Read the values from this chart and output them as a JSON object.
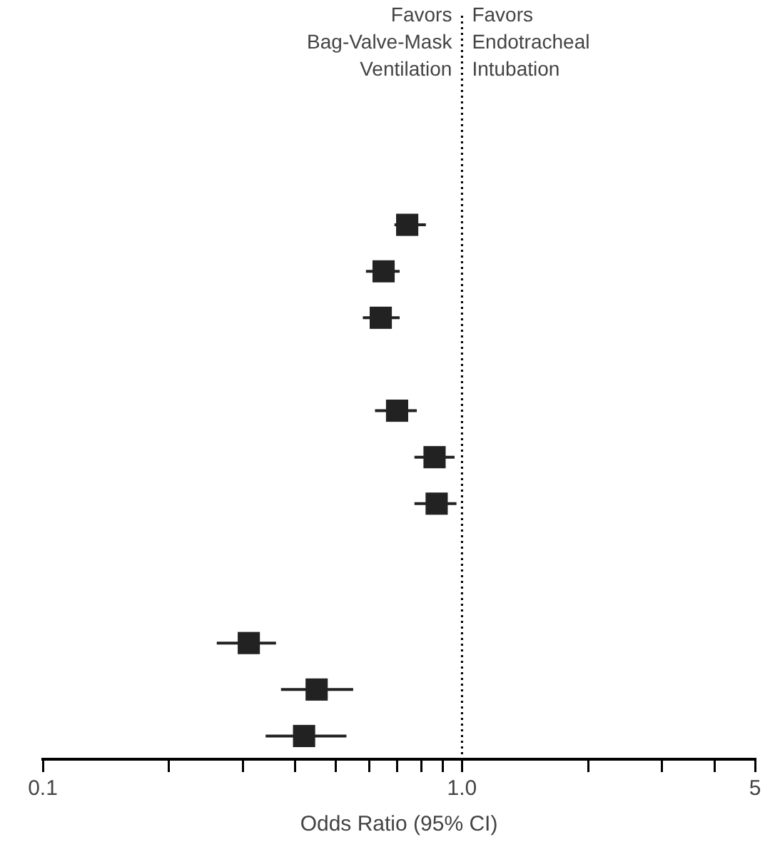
{
  "chart_data": {
    "type": "scatter",
    "orientation": "horizontal",
    "xlabel": "Odds Ratio (95% CI)",
    "annotations": [
      "Favors\nBag-Valve-Mask\nVentilation",
      "Favors\nEndotracheal\nIntubation"
    ],
    "categories": [
      null,
      null,
      null,
      null,
      null,
      null,
      null,
      null,
      null,
      null,
      null,
      null,
      null,
      null,
      null,
      null
    ],
    "series": [
      {
        "color": "#222222",
        "values": [
          null,
          null,
          null,
          null,
          0.74,
          0.65,
          0.64,
          null,
          0.7,
          0.86,
          0.87,
          null,
          null,
          0.31,
          0.45,
          0.42
        ],
        "errors": [
          null,
          null,
          null,
          null,
          [
            0.69,
            0.82
          ],
          [
            0.59,
            0.71
          ],
          [
            0.58,
            0.71
          ],
          null,
          [
            0.62,
            0.78
          ],
          [
            0.77,
            0.96
          ],
          [
            0.77,
            0.97
          ],
          null,
          null,
          [
            0.26,
            0.36
          ],
          [
            0.37,
            0.55
          ],
          [
            0.34,
            0.53
          ]
        ]
      }
    ],
    "marker": "square",
    "log": "x",
    "xlim": [
      0.1,
      5
    ],
    "xticks": [
      0.1,
      {
        "value": 0.2,
        "label": null
      },
      {
        "value": 0.3,
        "label": null
      },
      {
        "value": 0.4,
        "label": null
      },
      {
        "value": 0.5,
        "label": null
      },
      {
        "value": 0.6,
        "label": null
      },
      {
        "value": 0.7,
        "label": null
      },
      {
        "value": 0.8,
        "label": null
      },
      {
        "value": 0.9,
        "label": null
      },
      {
        "value": 1,
        "label": "1.0"
      },
      {
        "value": 2,
        "label": null
      },
      {
        "value": 3,
        "label": null
      },
      {
        "value": 4,
        "label": null
      },
      5
    ],
    "ref_lines": [
      {
        "axis": "x",
        "value": 1,
        "line_style": "dotted"
      }
    ]
  }
}
